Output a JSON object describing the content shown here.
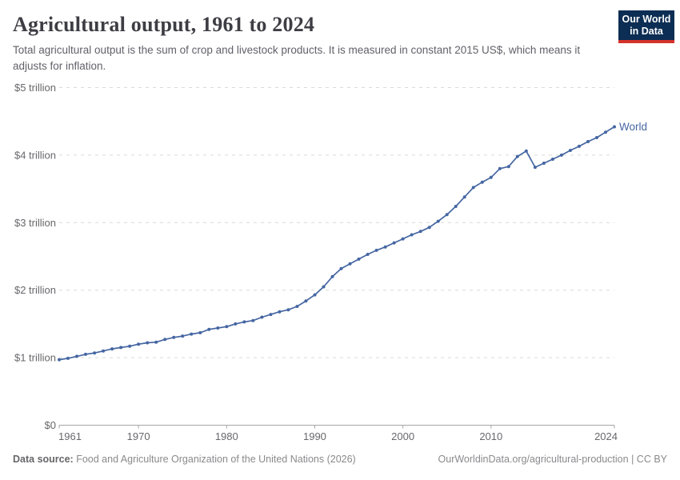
{
  "header": {
    "title": "Agricultural output, 1961 to 2024",
    "subtitle": "Total agricultural output is the sum of crop and livestock products. It is measured in constant 2015 US$, which means it adjusts for inflation."
  },
  "logo": {
    "line1": "Our World",
    "line2": "in Data",
    "bg_color": "#0d2e54",
    "accent_color": "#d4322a"
  },
  "chart_data": {
    "type": "line",
    "title": "Agricultural output, 1961 to 2024",
    "xlabel": "",
    "ylabel": "constant 2015 US$",
    "ylim": [
      0,
      5
    ],
    "grid": "horizontal-dashed",
    "legend_position": "end-of-line",
    "x_ticks": [
      1961,
      1970,
      1980,
      1990,
      2000,
      2010,
      2024
    ],
    "y_ticks": [
      {
        "value": 0,
        "label": "$0"
      },
      {
        "value": 1,
        "label": "$1 trillion"
      },
      {
        "value": 2,
        "label": "$2 trillion"
      },
      {
        "value": 3,
        "label": "$3 trillion"
      },
      {
        "value": 4,
        "label": "$4 trillion"
      },
      {
        "value": 5,
        "label": "$5 trillion"
      }
    ],
    "x": [
      1961,
      1962,
      1963,
      1964,
      1965,
      1966,
      1967,
      1968,
      1969,
      1970,
      1971,
      1972,
      1973,
      1974,
      1975,
      1976,
      1977,
      1978,
      1979,
      1980,
      1981,
      1982,
      1983,
      1984,
      1985,
      1986,
      1987,
      1988,
      1989,
      1990,
      1991,
      1992,
      1993,
      1994,
      1995,
      1996,
      1997,
      1998,
      1999,
      2000,
      2001,
      2002,
      2003,
      2004,
      2005,
      2006,
      2007,
      2008,
      2009,
      2010,
      2011,
      2012,
      2013,
      2014,
      2015,
      2016,
      2017,
      2018,
      2019,
      2020,
      2021,
      2022,
      2023,
      2024
    ],
    "series": [
      {
        "name": "World",
        "color": "#4566a2",
        "unit": "trillion $",
        "values": [
          0.97,
          0.99,
          1.02,
          1.05,
          1.07,
          1.1,
          1.13,
          1.15,
          1.17,
          1.2,
          1.22,
          1.23,
          1.27,
          1.3,
          1.32,
          1.35,
          1.37,
          1.42,
          1.44,
          1.46,
          1.5,
          1.53,
          1.55,
          1.6,
          1.64,
          1.68,
          1.71,
          1.76,
          1.84,
          1.93,
          2.05,
          2.2,
          2.32,
          2.39,
          2.46,
          2.53,
          2.59,
          2.64,
          2.7,
          2.76,
          2.82,
          2.87,
          2.93,
          3.02,
          3.12,
          3.24,
          3.38,
          3.52,
          3.6,
          3.67,
          3.8,
          3.83,
          3.98,
          4.06,
          3.82,
          3.88,
          3.94,
          4.0,
          4.07,
          4.13,
          4.2,
          4.26,
          4.34,
          4.42
        ]
      }
    ],
    "colors": {
      "grid": "#d9d9d9",
      "axis_line": "#a5a5a5",
      "tick_text": "#68686c"
    }
  },
  "footer": {
    "datasource_label": "Data source:",
    "datasource_text": " Food and Agriculture Organization of the United Nations (2026)",
    "link": "OurWorldinData.org/agricultural-production",
    "separator": " | ",
    "license": "CC BY"
  }
}
